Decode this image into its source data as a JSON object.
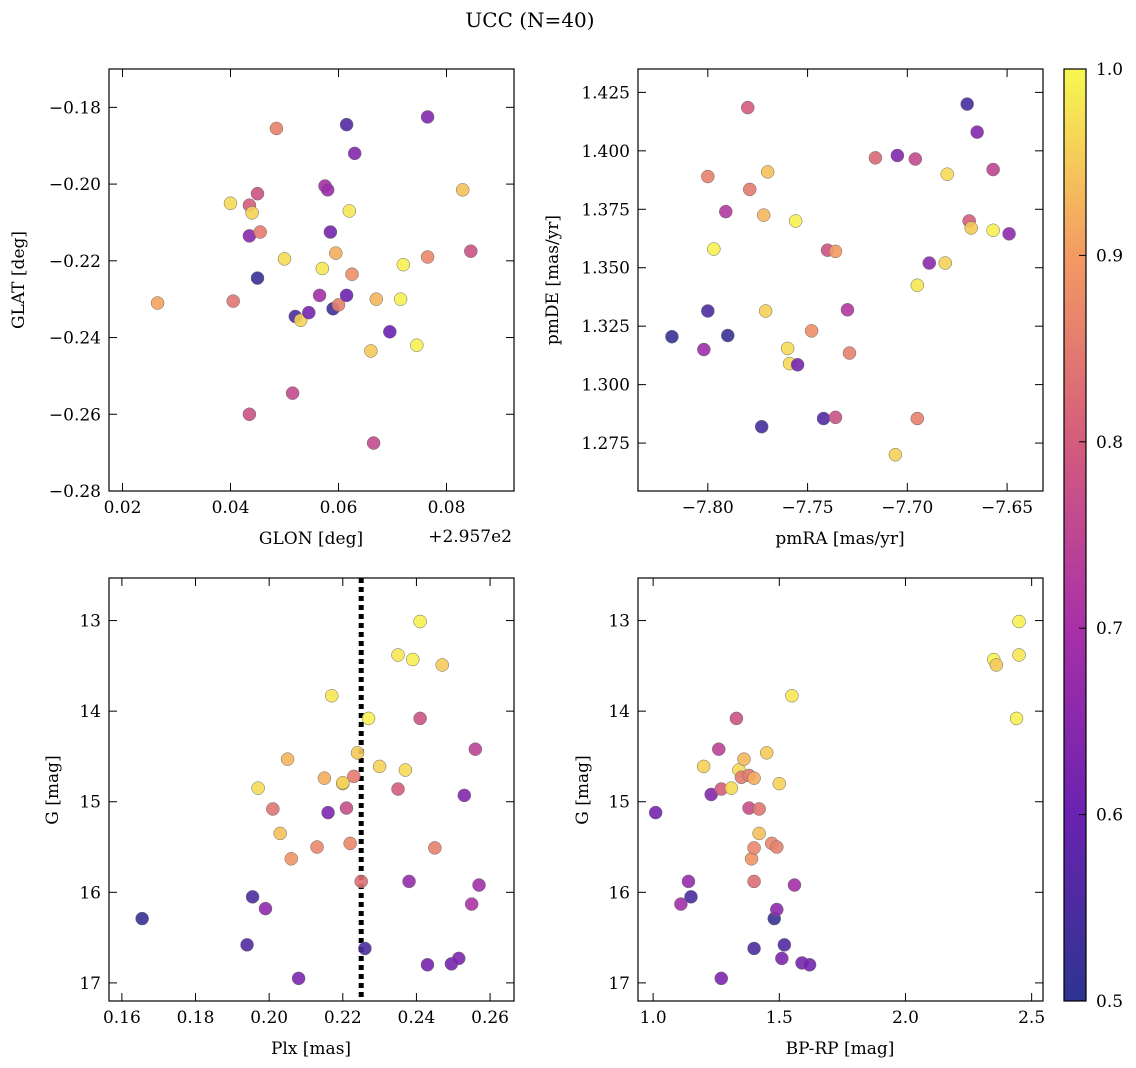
{
  "title": "UCC (N=40)",
  "colorbar": {
    "range": [
      0.5,
      1.0
    ],
    "ticks": [
      "0.5",
      "0.6",
      "0.7",
      "0.8",
      "0.9",
      "1.0"
    ],
    "colormap": "plasma"
  },
  "chart_data": [
    {
      "type": "scatter",
      "xlabel": "GLON [deg]",
      "ylabel": "GLAT [deg]",
      "offset_label": "+2.957e2",
      "xlim": [
        0.0175,
        0.0925
      ],
      "ylim": [
        -0.28,
        -0.17
      ],
      "xticks": [
        "0.02",
        "0.04",
        "0.06",
        "0.08"
      ],
      "yticks": [
        "−0.18",
        "−0.20",
        "−0.22",
        "−0.24",
        "−0.26",
        "−0.28"
      ],
      "points": [
        [
          0.0265,
          -0.231,
          0.91
        ],
        [
          0.0405,
          -0.2305,
          0.84
        ],
        [
          0.04,
          -0.205,
          0.97
        ],
        [
          0.0435,
          -0.2055,
          0.8
        ],
        [
          0.044,
          -0.2075,
          0.96
        ],
        [
          0.045,
          -0.2025,
          0.78
        ],
        [
          0.0435,
          -0.2135,
          0.65
        ],
        [
          0.0455,
          -0.2125,
          0.85
        ],
        [
          0.045,
          -0.2245,
          0.52
        ],
        [
          0.0485,
          -0.1855,
          0.86
        ],
        [
          0.0435,
          -0.26,
          0.78
        ],
        [
          0.05,
          -0.2195,
          0.97
        ],
        [
          0.0515,
          -0.2545,
          0.76
        ],
        [
          0.052,
          -0.2345,
          0.55
        ],
        [
          0.053,
          -0.2355,
          0.96
        ],
        [
          0.0545,
          -0.2335,
          0.62
        ],
        [
          0.0565,
          -0.229,
          0.69
        ],
        [
          0.057,
          -0.222,
          0.98
        ],
        [
          0.0575,
          -0.2005,
          0.7
        ],
        [
          0.058,
          -0.2015,
          0.68
        ],
        [
          0.0585,
          -0.2125,
          0.62
        ],
        [
          0.059,
          -0.2325,
          0.53
        ],
        [
          0.0595,
          -0.218,
          0.92
        ],
        [
          0.06,
          -0.2315,
          0.86
        ],
        [
          0.0615,
          -0.229,
          0.6
        ],
        [
          0.0615,
          -0.1845,
          0.56
        ],
        [
          0.062,
          -0.207,
          0.98
        ],
        [
          0.0625,
          -0.2235,
          0.88
        ],
        [
          0.063,
          -0.192,
          0.64
        ],
        [
          0.066,
          -0.2435,
          0.95
        ],
        [
          0.0665,
          -0.2675,
          0.76
        ],
        [
          0.067,
          -0.23,
          0.93
        ],
        [
          0.0695,
          -0.2385,
          0.6
        ],
        [
          0.0715,
          -0.23,
          0.99
        ],
        [
          0.072,
          -0.221,
          0.99
        ],
        [
          0.0745,
          -0.242,
          0.99
        ],
        [
          0.0765,
          -0.219,
          0.87
        ],
        [
          0.0765,
          -0.1825,
          0.64
        ],
        [
          0.083,
          -0.2015,
          0.94
        ],
        [
          0.0845,
          -0.2175,
          0.78
        ]
      ]
    },
    {
      "type": "scatter",
      "xlabel": "pmRA [mas/yr]",
      "ylabel": "pmDE [mas/yr]",
      "xlim": [
        -7.835,
        -7.632
      ],
      "ylim": [
        1.2545,
        1.435
      ],
      "xticks": [
        "−7.80",
        "−7.75",
        "−7.70",
        "−7.65"
      ],
      "yticks": [
        "1.275",
        "1.300",
        "1.325",
        "1.350",
        "1.375",
        "1.400",
        "1.425"
      ],
      "points": [
        [
          -7.818,
          1.3205,
          0.52
        ],
        [
          -7.802,
          1.315,
          0.68
        ],
        [
          -7.8,
          1.389,
          0.86
        ],
        [
          -7.8,
          1.3315,
          0.55
        ],
        [
          -7.797,
          1.358,
          0.99
        ],
        [
          -7.791,
          1.374,
          0.72
        ],
        [
          -7.79,
          1.321,
          0.52
        ],
        [
          -7.78,
          1.4185,
          0.8
        ],
        [
          -7.779,
          1.3835,
          0.85
        ],
        [
          -7.773,
          1.282,
          0.54
        ],
        [
          -7.772,
          1.3725,
          0.93
        ],
        [
          -7.771,
          1.3315,
          0.96
        ],
        [
          -7.77,
          1.391,
          0.94
        ],
        [
          -7.76,
          1.3155,
          0.97
        ],
        [
          -7.759,
          1.309,
          0.97
        ],
        [
          -7.756,
          1.37,
          0.99
        ],
        [
          -7.755,
          1.3085,
          0.62
        ],
        [
          -7.748,
          1.323,
          0.88
        ],
        [
          -7.742,
          1.2855,
          0.56
        ],
        [
          -7.74,
          1.3575,
          0.78
        ],
        [
          -7.736,
          1.357,
          0.9
        ],
        [
          -7.736,
          1.286,
          0.78
        ],
        [
          -7.73,
          1.332,
          0.72
        ],
        [
          -7.729,
          1.3135,
          0.86
        ],
        [
          -7.716,
          1.397,
          0.82
        ],
        [
          -7.706,
          1.27,
          0.96
        ],
        [
          -7.705,
          1.398,
          0.64
        ],
        [
          -7.696,
          1.3965,
          0.76
        ],
        [
          -7.695,
          1.2855,
          0.86
        ],
        [
          -7.695,
          1.3425,
          0.98
        ],
        [
          -7.689,
          1.352,
          0.66
        ],
        [
          -7.681,
          1.352,
          0.96
        ],
        [
          -7.68,
          1.39,
          0.97
        ],
        [
          -7.67,
          1.42,
          0.54
        ],
        [
          -7.669,
          1.37,
          0.8
        ],
        [
          -7.668,
          1.367,
          0.95
        ],
        [
          -7.665,
          1.408,
          0.64
        ],
        [
          -7.657,
          1.392,
          0.75
        ],
        [
          -7.657,
          1.366,
          0.99
        ],
        [
          -7.649,
          1.3645,
          0.66
        ]
      ]
    },
    {
      "type": "scatter",
      "xlabel": "Plx [mas]",
      "ylabel": "G [mag]",
      "xlim": [
        0.1565,
        0.2665
      ],
      "ylim": [
        17.2,
        12.53
      ],
      "invert_y": true,
      "xticks": [
        "0.16",
        "0.18",
        "0.20",
        "0.22",
        "0.24",
        "0.26"
      ],
      "yticks": [
        "13",
        "14",
        "15",
        "16",
        "17"
      ],
      "vline": {
        "x": 0.225,
        "style": "dotted"
      },
      "points": [
        [
          0.1655,
          16.29,
          0.52
        ],
        [
          0.194,
          16.58,
          0.56
        ],
        [
          0.1955,
          16.05,
          0.55
        ],
        [
          0.197,
          14.85,
          0.97
        ],
        [
          0.199,
          16.18,
          0.66
        ],
        [
          0.201,
          15.08,
          0.84
        ],
        [
          0.203,
          15.35,
          0.94
        ],
        [
          0.205,
          14.53,
          0.93
        ],
        [
          0.206,
          15.63,
          0.89
        ],
        [
          0.208,
          16.95,
          0.63
        ],
        [
          0.213,
          15.5,
          0.87
        ],
        [
          0.215,
          14.74,
          0.92
        ],
        [
          0.216,
          15.12,
          0.63
        ],
        [
          0.217,
          13.83,
          0.98
        ],
        [
          0.22,
          14.8,
          0.96
        ],
        [
          0.221,
          15.07,
          0.77
        ],
        [
          0.222,
          15.46,
          0.87
        ],
        [
          0.223,
          14.72,
          0.85
        ],
        [
          0.224,
          14.46,
          0.95
        ],
        [
          0.225,
          15.88,
          0.83
        ],
        [
          0.226,
          16.62,
          0.55
        ],
        [
          0.227,
          14.08,
          0.99
        ],
        [
          0.23,
          14.61,
          0.96
        ],
        [
          0.235,
          13.38,
          0.98
        ],
        [
          0.235,
          14.86,
          0.8
        ],
        [
          0.237,
          14.65,
          0.97
        ],
        [
          0.238,
          15.88,
          0.67
        ],
        [
          0.239,
          13.43,
          0.99
        ],
        [
          0.241,
          13.01,
          0.99
        ],
        [
          0.241,
          14.08,
          0.78
        ],
        [
          0.243,
          16.8,
          0.62
        ],
        [
          0.245,
          15.51,
          0.86
        ],
        [
          0.247,
          13.49,
          0.95
        ],
        [
          0.2495,
          16.79,
          0.62
        ],
        [
          0.2515,
          16.73,
          0.63
        ],
        [
          0.253,
          14.93,
          0.64
        ],
        [
          0.255,
          16.13,
          0.71
        ],
        [
          0.256,
          14.42,
          0.74
        ],
        [
          0.257,
          15.92,
          0.69
        ],
        [
          0.22,
          14.79,
          0.96
        ]
      ]
    },
    {
      "type": "scatter",
      "xlabel": "BP-RP [mag]",
      "ylabel": "G [mag]",
      "xlim": [
        0.94,
        2.545
      ],
      "ylim": [
        17.2,
        12.53
      ],
      "invert_y": true,
      "xticks": [
        "1.0",
        "1.5",
        "2.0",
        "2.5"
      ],
      "yticks": [
        "13",
        "14",
        "15",
        "16",
        "17"
      ],
      "points": [
        [
          1.01,
          15.12,
          0.62
        ],
        [
          1.11,
          16.13,
          0.69
        ],
        [
          1.14,
          15.88,
          0.67
        ],
        [
          1.15,
          16.05,
          0.55
        ],
        [
          1.2,
          14.61,
          0.96
        ],
        [
          1.23,
          14.92,
          0.64
        ],
        [
          1.26,
          14.42,
          0.74
        ],
        [
          1.27,
          14.86,
          0.8
        ],
        [
          1.27,
          16.95,
          0.63
        ],
        [
          1.31,
          14.85,
          0.97
        ],
        [
          1.33,
          14.08,
          0.78
        ],
        [
          1.34,
          14.65,
          0.97
        ],
        [
          1.35,
          14.73,
          0.85
        ],
        [
          1.36,
          14.53,
          0.93
        ],
        [
          1.38,
          15.07,
          0.77
        ],
        [
          1.38,
          14.71,
          0.85
        ],
        [
          1.39,
          15.63,
          0.89
        ],
        [
          1.4,
          14.74,
          0.92
        ],
        [
          1.4,
          15.51,
          0.87
        ],
        [
          1.4,
          15.88,
          0.83
        ],
        [
          1.4,
          16.62,
          0.55
        ],
        [
          1.42,
          15.35,
          0.94
        ],
        [
          1.42,
          15.08,
          0.84
        ],
        [
          1.45,
          14.46,
          0.95
        ],
        [
          1.47,
          15.46,
          0.87
        ],
        [
          1.48,
          16.29,
          0.52
        ],
        [
          1.49,
          15.5,
          0.86
        ],
        [
          1.49,
          16.19,
          0.66
        ],
        [
          1.5,
          14.8,
          0.96
        ],
        [
          1.51,
          16.73,
          0.63
        ],
        [
          1.52,
          16.58,
          0.56
        ],
        [
          1.55,
          13.83,
          0.98
        ],
        [
          1.56,
          15.92,
          0.69
        ],
        [
          1.59,
          16.78,
          0.62
        ],
        [
          1.62,
          16.8,
          0.62
        ],
        [
          2.35,
          13.43,
          0.99
        ],
        [
          2.36,
          13.49,
          0.95
        ],
        [
          2.44,
          14.08,
          0.99
        ],
        [
          2.45,
          13.38,
          0.98
        ],
        [
          2.45,
          13.01,
          0.99
        ]
      ]
    }
  ]
}
